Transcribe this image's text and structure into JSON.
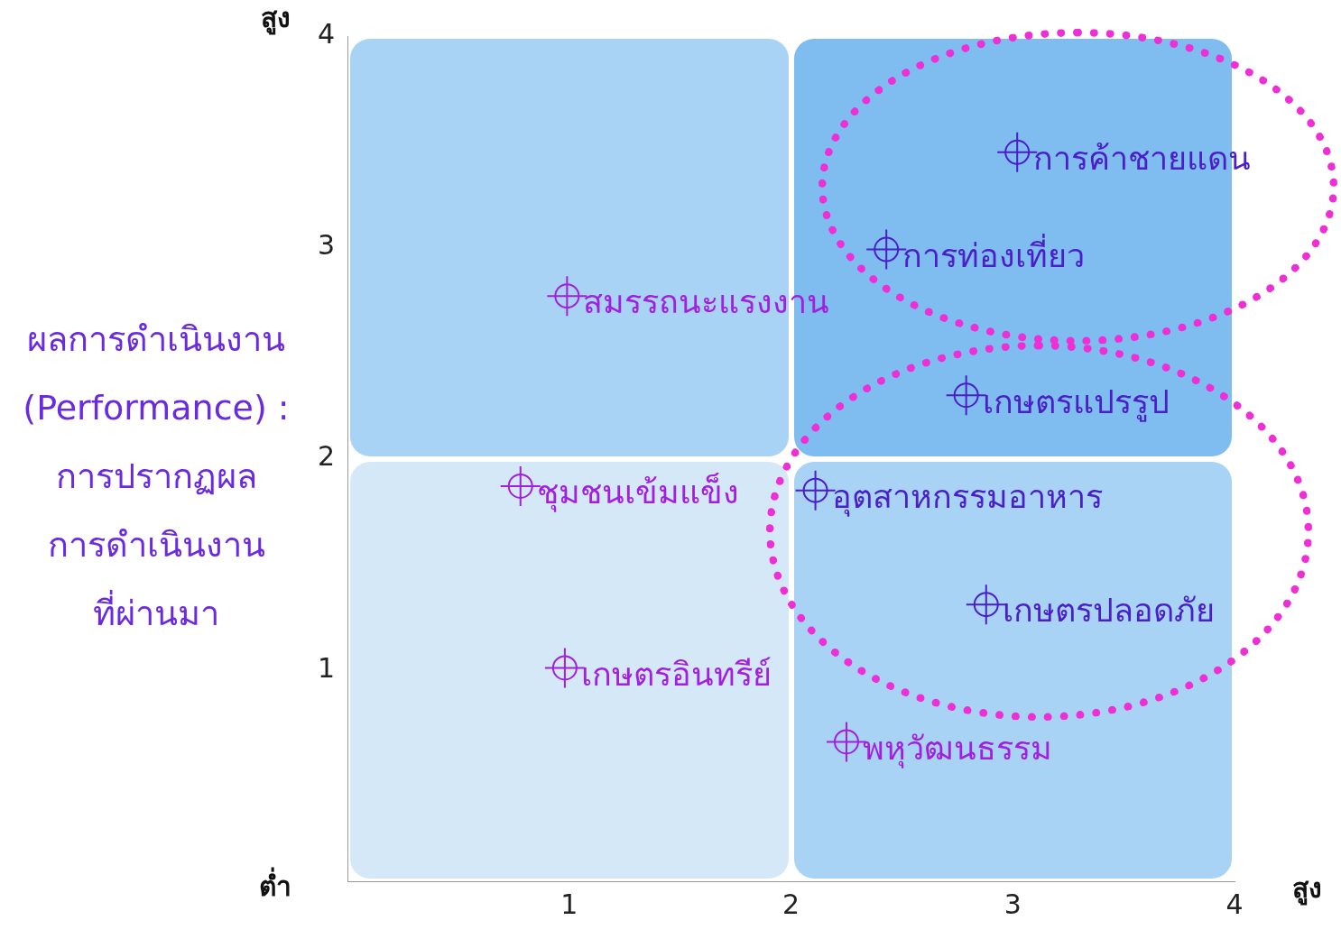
{
  "chart_data": {
    "type": "scatter",
    "ylabel": "ผลการดำเนินงาน\n(Performance) :\nการปรากฏผล\nการดำเนินงาน\nที่ผ่านมา",
    "annotations": [
      "สูง",
      "ต่ำ",
      "สูง",
      {
        "text": "การค้าชายแดน",
        "x": 3.02,
        "y": 3.45
      },
      {
        "text": "การท่องเที่ยว",
        "x": 2.43,
        "y": 2.99
      },
      {
        "text": "สมรรถนะแรงงาน",
        "x": 0.99,
        "y": 2.77
      },
      {
        "text": "เกษตรแปรรูป",
        "x": 2.79,
        "y": 2.3
      },
      {
        "text": "ชุมชนเข้มแข็ง",
        "x": 0.78,
        "y": 1.87
      },
      {
        "text": "อุตสาหกรรมอาหาร",
        "x": 2.11,
        "y": 1.85
      },
      {
        "text": "เกษตรปลอดภัย",
        "x": 2.88,
        "y": 1.31
      },
      {
        "text": "เกษตรอินทรีย์",
        "x": 0.98,
        "y": 1.01
      },
      {
        "text": "พหุวัฒนธรรม",
        "x": 2.25,
        "y": 0.66
      }
    ],
    "xlim": [
      0,
      4
    ],
    "xticks": [
      1,
      2,
      3,
      4
    ],
    "ylim": [
      0,
      4
    ],
    "yticks": [
      1,
      2,
      3,
      4
    ],
    "grid": false,
    "marker": "circle",
    "series": [
      {
        "x": [
          3.02,
          2.43,
          0.99,
          2.79,
          0.78,
          2.11,
          2.88,
          0.98,
          2.25
        ],
        "values": [
          3.45,
          2.99,
          2.77,
          2.3,
          1.87,
          1.85,
          1.31,
          1.01,
          0.66
        ],
        "colors": [
          "#4a1ec8",
          "#4a1ec8",
          "#a21ee0",
          "#4a1ec8",
          "#a21ee0",
          "#4a1ec8",
          "#4a1ec8",
          "#a21ee0",
          "#a21ee0"
        ]
      }
    ]
  }
}
